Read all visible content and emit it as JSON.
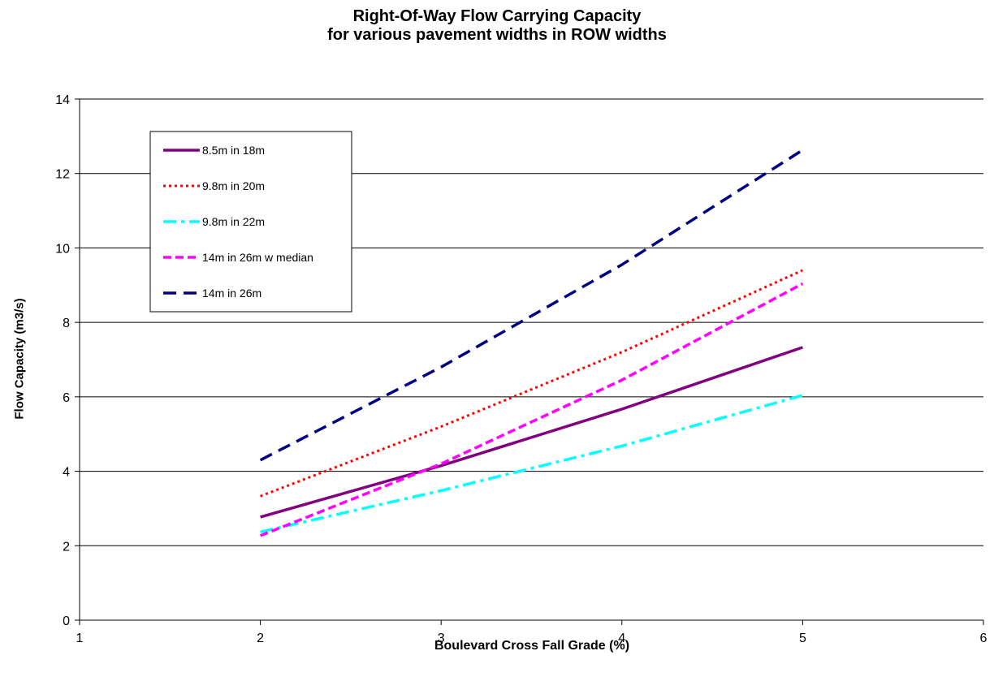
{
  "chart_data": {
    "type": "line",
    "title_line1": "Right-Of-Way  Flow Carrying Capacity",
    "title_line2": "for various pavement widths in ROW widths",
    "xlabel": "Boulevard Cross Fall Grade (%)",
    "ylabel": "Flow Capacity (m3/s)",
    "xlim": [
      1,
      6
    ],
    "ylim": [
      0,
      14
    ],
    "xticks": [
      1,
      2,
      3,
      4,
      5,
      6
    ],
    "yticks": [
      0,
      2,
      4,
      6,
      8,
      10,
      12,
      14
    ],
    "grid": "horizontal",
    "legend_position": "top-left",
    "series": [
      {
        "name": "8.5m in 18m",
        "color": "#800080",
        "style": "solid",
        "x": [
          2,
          3,
          4,
          5
        ],
        "y": [
          2.77,
          4.15,
          5.67,
          7.33
        ]
      },
      {
        "name": "9.8m in 20m",
        "color": "#ff0000",
        "style": "dotted",
        "x": [
          2,
          3,
          4,
          5
        ],
        "y": [
          3.33,
          5.2,
          7.2,
          9.4
        ]
      },
      {
        "name": "9.8m in 22m",
        "color": "#00ffff",
        "style": "dashdot",
        "x": [
          2,
          3,
          4,
          5
        ],
        "y": [
          2.37,
          3.48,
          4.68,
          6.04
        ]
      },
      {
        "name": "14m in 26m w median",
        "color": "#ff00ff",
        "style": "dashed",
        "x": [
          2,
          3,
          4,
          5
        ],
        "y": [
          2.27,
          4.2,
          6.45,
          9.04
        ]
      },
      {
        "name": "14m in 26m",
        "color": "#000080",
        "style": "longdash",
        "x": [
          2,
          3,
          4,
          5
        ],
        "y": [
          4.3,
          6.8,
          9.55,
          12.63
        ]
      }
    ]
  }
}
